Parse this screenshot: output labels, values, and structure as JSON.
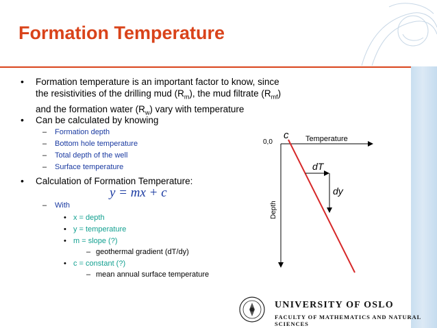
{
  "slide": {
    "title": "Formation Temperature",
    "colors": {
      "title": "#d9431a",
      "level2": "#1a3aa1",
      "level3": "#109f8f",
      "line": "#d62728"
    }
  },
  "bullets": {
    "b1_line1": "Formation temperature is an important factor to know, since",
    "b1_line2_a": "the resistivities of the drilling mud (R",
    "b1_line2_sub1": "m",
    "b1_line2_b": "), the mud filtrate (R",
    "b1_line2_sub2": "mf",
    "b1_line2_c": ")",
    "b1_line3_a": "and the formation water (R",
    "b1_line3_sub": "w",
    "b1_line3_b": ") vary with temperature",
    "b2": "Can be calculated by knowing",
    "b2_items": [
      "Formation depth",
      "Bottom hole temperature",
      "Total depth of the well",
      "Surface temperature"
    ],
    "b3": "Calculation of Formation Temperature:",
    "equation": "y = mx + c",
    "with": "With",
    "with_items": [
      "x = depth",
      "y = temperature",
      "m = slope (?)",
      "c = constant (?)"
    ],
    "slope_note": "geothermal gradient (dT/dy)",
    "constant_note": "mean annual surface temperature"
  },
  "diagram": {
    "origin": "0,0",
    "c_label": "c",
    "x_axis": "Temperature",
    "y_axis": "Depth",
    "dT": "dT",
    "dy": "dy"
  },
  "footer": {
    "university": "UNIVERSITY OF OSLO",
    "faculty": "FACULTY OF MATHEMATICS AND NATURAL SCIENCES"
  }
}
